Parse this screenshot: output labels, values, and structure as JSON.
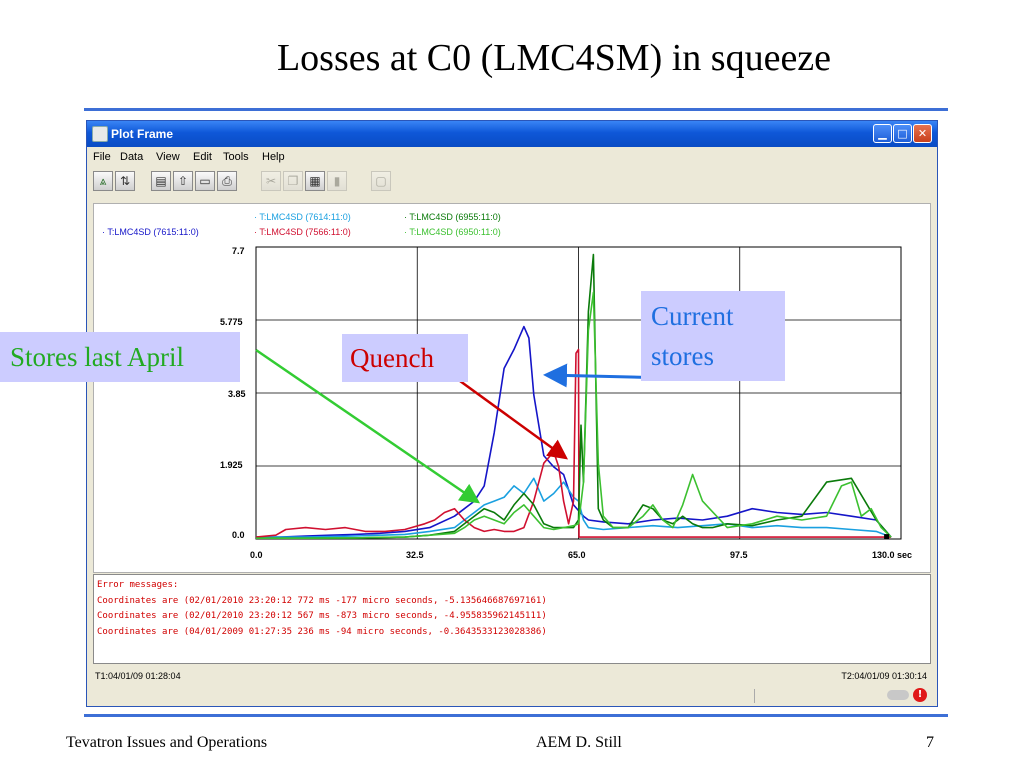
{
  "slide": {
    "title": "Losses at C0 (LMC4SM) in squeeze",
    "footer_left": "Tevatron Issues and Operations",
    "footer_center": "AEM  D. Still",
    "page_number": "7",
    "rule_color": "#3d6fd6"
  },
  "window": {
    "title": "Plot Frame",
    "icon": "java-cup-icon",
    "controls": [
      "minimize-icon",
      "maximize-icon",
      "close-icon"
    ]
  },
  "menubar": {
    "items": [
      "File",
      "Data",
      "View",
      "Edit",
      "Tools",
      "Help"
    ]
  },
  "toolbar": {
    "icons": [
      "zoom-axis-icon",
      "swap-axis-icon",
      "save-icon",
      "export-icon",
      "load-icon",
      "print-icon",
      "cut-icon",
      "copy-icon",
      "paste-icon",
      "delete-icon",
      "blank-icon"
    ]
  },
  "legend": [
    {
      "label": "· T:LMC4SD (7615:11:0)",
      "color": "#1515c8"
    },
    {
      "label": "· T:LMC4SD (7614:11:0)",
      "color": "#1aa0e0"
    },
    {
      "label": "· T:LMC4SD (7566:11:0)",
      "color": "#d01030"
    },
    {
      "label": "· T:LMC4SD (6955:11:0)",
      "color": "#0a7a0a"
    },
    {
      "label": "· T:LMC4SD (6950:11:0)",
      "color": "#3cc030"
    }
  ],
  "annotations": {
    "stores_last_april": "Stores last April",
    "quench": "Quench",
    "current_line1": "Current",
    "current_line2": "stores",
    "arrow_green": "#33cc33",
    "arrow_red": "#cc0000",
    "arrow_blue": "#1f6fe0"
  },
  "error_panel": {
    "header": "Error messages:",
    "lines": [
      "Coordinates are (02/01/2010 23:20:12 772 ms -177 micro seconds, -5.135646687697161)",
      "Coordinates are (02/01/2010 23:20:12 567 ms -873 micro seconds, -4.955835962145111)",
      "Coordinates are (04/01/2009 01:27:35 236 ms -94 micro seconds, -0.3643533123028386)"
    ]
  },
  "status": {
    "t1": "T1:04/01/09 01:28:04",
    "t2": "T2:04/01/09 01:30:14"
  },
  "chart_data": {
    "type": "line",
    "xlim": [
      0,
      130
    ],
    "ylim": [
      0,
      7.7
    ],
    "x_ticks": [
      "0.0",
      "32.5",
      "65.0",
      "97.5",
      "130.0 sec"
    ],
    "y_ticks": [
      "0.0",
      "1.925",
      "3.85",
      "5.775",
      "7.7"
    ],
    "x_tick_values": [
      0,
      32.5,
      65,
      97.5,
      130
    ],
    "y_tick_values": [
      0,
      1.925,
      3.85,
      5.775,
      7.7
    ],
    "grid": true,
    "series": [
      {
        "name": "T:LMC4SD (7615:11:0)",
        "color": "#1515c8",
        "x": [
          0,
          5,
          10,
          15,
          20,
          25,
          30,
          35,
          40,
          42,
          44,
          46,
          48,
          50,
          52,
          54,
          55,
          56,
          58,
          60,
          62,
          64,
          66,
          67,
          70,
          75,
          80,
          85,
          90,
          95,
          100,
          105,
          110,
          115,
          120,
          125,
          128
        ],
        "y": [
          0.05,
          0.05,
          0.08,
          0.1,
          0.12,
          0.15,
          0.2,
          0.3,
          0.6,
          0.8,
          1.0,
          1.4,
          2.8,
          4.5,
          5.0,
          5.6,
          5.3,
          3.8,
          2.2,
          1.9,
          1.7,
          0.9,
          0.6,
          0.5,
          0.45,
          0.4,
          0.5,
          0.55,
          0.5,
          0.6,
          0.8,
          0.7,
          0.65,
          0.7,
          0.6,
          0.5,
          0.05
        ]
      },
      {
        "name": "T:LMC4SD (7614:11:0)",
        "color": "#1aa0e0",
        "x": [
          0,
          10,
          20,
          30,
          35,
          40,
          42,
          44,
          46,
          48,
          50,
          52,
          54,
          56,
          58,
          60,
          62,
          64,
          65,
          66,
          67,
          70,
          75,
          80,
          85,
          90,
          95,
          100,
          105,
          110,
          115,
          120,
          125,
          128
        ],
        "y": [
          0.05,
          0.05,
          0.08,
          0.12,
          0.2,
          0.3,
          0.5,
          0.7,
          0.9,
          1.0,
          1.1,
          1.4,
          1.2,
          1.6,
          1.0,
          1.2,
          1.5,
          1.1,
          1.0,
          0.5,
          0.3,
          0.25,
          0.3,
          0.35,
          0.3,
          0.35,
          0.4,
          0.3,
          0.35,
          0.3,
          0.3,
          0.25,
          0.2,
          0.05
        ]
      },
      {
        "name": "T:LMC4SD (7566:11:0)",
        "color": "#d01030",
        "x": [
          0,
          4,
          6,
          10,
          14,
          18,
          22,
          26,
          30,
          34,
          36,
          38,
          40,
          42,
          44,
          46,
          48,
          50,
          52,
          54,
          56,
          58,
          60,
          61,
          62,
          63,
          64,
          64.5,
          65,
          65.1,
          70,
          80,
          90,
          100,
          110,
          120,
          128
        ],
        "y": [
          0.05,
          0.1,
          0.25,
          0.3,
          0.25,
          0.3,
          0.2,
          0.2,
          0.25,
          0.4,
          0.5,
          0.7,
          0.8,
          0.5,
          0.3,
          0.2,
          0.25,
          0.2,
          0.2,
          0.3,
          1.0,
          2.0,
          2.3,
          1.9,
          1.0,
          0.4,
          1.0,
          4.9,
          5.0,
          0.05,
          0.05,
          0.05,
          0.05,
          0.05,
          0.05,
          0.05,
          0.05
        ]
      },
      {
        "name": "T:LMC4SD (6955:11:0)",
        "color": "#0a7a0a",
        "x": [
          0,
          10,
          20,
          30,
          35,
          40,
          42,
          44,
          46,
          48,
          50,
          52,
          54,
          56,
          58,
          60,
          62,
          64,
          65,
          65.5,
          66,
          67,
          68,
          68.5,
          69,
          70,
          72,
          75,
          78,
          80,
          82,
          84,
          86,
          88,
          90,
          92,
          95,
          100,
          105,
          110,
          115,
          120,
          125,
          128
        ],
        "y": [
          0.02,
          0.02,
          0.03,
          0.05,
          0.1,
          0.2,
          0.4,
          0.6,
          0.8,
          0.7,
          0.5,
          0.9,
          1.2,
          0.9,
          0.4,
          0.3,
          0.3,
          0.3,
          0.5,
          3.0,
          1.5,
          6.0,
          7.5,
          4.0,
          0.8,
          0.5,
          0.3,
          0.3,
          0.9,
          0.8,
          0.5,
          0.4,
          0.6,
          0.4,
          0.3,
          0.3,
          0.4,
          0.35,
          0.5,
          0.6,
          1.5,
          1.6,
          0.5,
          0.05
        ]
      },
      {
        "name": "T:LMC4SD (6950:11:0)",
        "color": "#3cc030",
        "x": [
          0,
          10,
          20,
          30,
          35,
          40,
          42,
          44,
          46,
          48,
          50,
          52,
          54,
          56,
          58,
          60,
          62,
          64,
          65,
          66,
          67,
          68,
          69,
          70,
          72,
          75,
          78,
          80,
          82,
          84,
          86,
          88,
          90,
          95,
          100,
          105,
          110,
          115,
          118,
          120,
          122,
          124,
          126,
          128
        ],
        "y": [
          0.02,
          0.02,
          0.03,
          0.05,
          0.1,
          0.15,
          0.3,
          0.5,
          0.6,
          0.5,
          0.4,
          0.7,
          0.9,
          0.6,
          0.3,
          0.25,
          0.3,
          0.35,
          0.4,
          1.5,
          5.5,
          6.5,
          2.0,
          0.6,
          0.3,
          0.3,
          0.6,
          0.9,
          0.5,
          0.3,
          0.9,
          1.7,
          1.0,
          0.3,
          0.4,
          0.6,
          0.5,
          0.6,
          1.4,
          1.5,
          0.6,
          0.8,
          0.3,
          0.05
        ]
      }
    ]
  }
}
